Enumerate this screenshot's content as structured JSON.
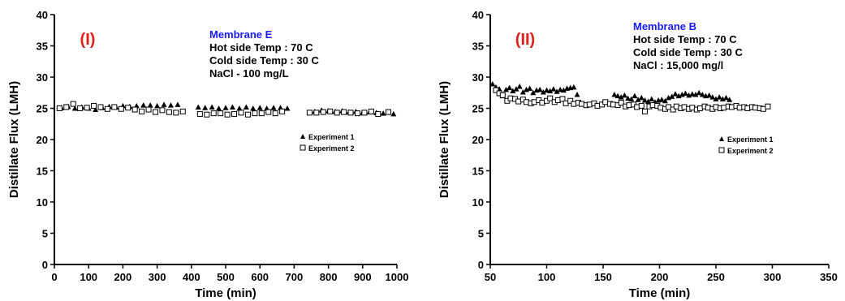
{
  "chart_data": [
    {
      "type": "scatter",
      "panel_label": "(I)",
      "xlabel": "Time (min)",
      "ylabel": "Distillate Flux (LMH)",
      "xlim": [
        0,
        1000
      ],
      "ylim": [
        0,
        40
      ],
      "xticks": [
        0,
        100,
        200,
        300,
        400,
        500,
        600,
        700,
        800,
        900,
        1000
      ],
      "yticks": [
        0,
        5,
        10,
        15,
        20,
        25,
        30,
        35,
        40
      ],
      "annotation": {
        "title": "Membrane E",
        "lines": [
          "Hot side Temp : 70 C",
          "Cold side Temp : 30 C",
          "NaCl - 100 mg/L"
        ]
      },
      "legend_position": "right-middle",
      "series": [
        {
          "name": "Experiment 1",
          "marker": "filled-triangle",
          "x": [
            20,
            40,
            60,
            80,
            100,
            120,
            140,
            160,
            180,
            200,
            220,
            240,
            260,
            280,
            300,
            320,
            340,
            360,
            420,
            440,
            460,
            480,
            500,
            520,
            540,
            560,
            580,
            600,
            620,
            640,
            660,
            680,
            760,
            780,
            800,
            820,
            840,
            860,
            880,
            900,
            920,
            940,
            960,
            990
          ],
          "y": [
            25.1,
            25.3,
            25.0,
            25.2,
            25.0,
            24.8,
            25.1,
            25.3,
            25.2,
            25.4,
            25.3,
            25.4,
            25.5,
            25.5,
            25.4,
            25.6,
            25.5,
            25.6,
            25.2,
            25.1,
            25.2,
            25.0,
            25.1,
            25.2,
            25.0,
            25.2,
            25.0,
            25.1,
            25.0,
            25.1,
            25.1,
            25.0,
            24.5,
            24.7,
            24.6,
            24.5,
            24.6,
            24.4,
            24.5,
            24.3,
            24.4,
            24.3,
            24.2,
            24.1
          ]
        },
        {
          "name": "Experiment 2",
          "marker": "open-square",
          "x": [
            15,
            35,
            55,
            75,
            95,
            115,
            135,
            155,
            175,
            195,
            215,
            235,
            255,
            275,
            295,
            315,
            335,
            355,
            375,
            425,
            445,
            465,
            485,
            505,
            525,
            545,
            565,
            585,
            605,
            625,
            645,
            665,
            745,
            765,
            785,
            805,
            825,
            845,
            865,
            885,
            905,
            925,
            945,
            975
          ],
          "y": [
            25.0,
            25.2,
            25.7,
            25.0,
            25.1,
            25.4,
            25.2,
            24.9,
            25.2,
            24.9,
            25.1,
            24.8,
            24.5,
            24.8,
            24.4,
            24.7,
            24.4,
            24.3,
            24.5,
            24.1,
            24.0,
            24.2,
            24.2,
            24.0,
            24.1,
            24.3,
            24.0,
            24.2,
            24.2,
            24.4,
            24.2,
            24.5,
            24.3,
            24.3,
            24.4,
            24.5,
            24.3,
            24.4,
            24.3,
            24.2,
            24.3,
            24.5,
            24.1,
            24.4
          ]
        }
      ]
    },
    {
      "type": "scatter",
      "panel_label": "(II)",
      "xlabel": "Time (min)",
      "ylabel": "Distillate Flux (LMH)",
      "xlim": [
        50,
        350
      ],
      "ylim": [
        0,
        40
      ],
      "xticks": [
        50,
        100,
        150,
        200,
        250,
        300,
        350
      ],
      "yticks": [
        0,
        5,
        10,
        15,
        20,
        25,
        30,
        35,
        40
      ],
      "annotation": {
        "title": "Membrane B",
        "lines": [
          "Hot side Temp : 70 C",
          "Cold side Temp : 30 C",
          "NaCl : 15,000 mg/l"
        ]
      },
      "legend_position": "right-middle",
      "series": [
        {
          "name": "Experiment 1",
          "marker": "filled-triangle",
          "x": [
            52,
            55,
            58,
            61,
            64,
            67,
            70,
            73,
            76,
            79,
            82,
            85,
            88,
            91,
            94,
            97,
            100,
            103,
            106,
            109,
            112,
            115,
            118,
            121,
            124,
            127,
            160,
            163,
            166,
            169,
            172,
            175,
            178,
            181,
            184,
            187,
            190,
            193,
            196,
            199,
            202,
            205,
            208,
            211,
            214,
            217,
            220,
            223,
            226,
            229,
            232,
            235,
            238,
            241,
            244,
            247,
            250,
            253,
            256,
            259,
            262
          ],
          "y": [
            28.9,
            28.4,
            28.1,
            27.0,
            28.0,
            28.3,
            27.8,
            28.1,
            28.5,
            27.6,
            28.0,
            28.2,
            27.5,
            27.9,
            28.0,
            27.6,
            27.9,
            27.8,
            28.1,
            27.7,
            28.0,
            27.9,
            28.2,
            28.3,
            28.4,
            27.2,
            27.2,
            27.0,
            26.8,
            27.1,
            26.6,
            26.5,
            27.0,
            26.4,
            26.7,
            26.3,
            26.1,
            26.5,
            26.0,
            26.3,
            26.4,
            26.2,
            26.7,
            26.9,
            27.3,
            27.0,
            27.2,
            27.4,
            27.1,
            27.3,
            27.2,
            27.5,
            27.2,
            27.0,
            27.1,
            26.8,
            26.5,
            26.8,
            26.5,
            26.7,
            26.4
          ]
        },
        {
          "name": "Experiment 2",
          "marker": "open-square",
          "x": [
            55,
            58,
            61,
            65,
            68,
            72,
            75,
            79,
            82,
            86,
            89,
            93,
            96,
            100,
            103,
            107,
            110,
            114,
            117,
            121,
            124,
            128,
            131,
            135,
            138,
            142,
            145,
            149,
            152,
            156,
            159,
            163,
            166,
            170,
            173,
            177,
            180,
            184,
            187,
            191,
            194,
            198,
            201,
            205,
            208,
            212,
            215,
            219,
            222,
            226,
            229,
            233,
            236,
            240,
            243,
            247,
            250,
            254,
            257,
            261,
            264,
            268,
            271,
            275,
            278,
            282,
            285,
            289,
            292,
            296
          ],
          "y": [
            27.9,
            27.4,
            27.1,
            26.2,
            26.6,
            26.5,
            26.1,
            26.4,
            26.0,
            25.8,
            26.0,
            26.3,
            25.9,
            26.2,
            26.6,
            26.0,
            26.3,
            26.5,
            25.8,
            26.2,
            25.7,
            25.9,
            25.7,
            25.5,
            25.6,
            25.8,
            25.4,
            25.6,
            26.0,
            25.7,
            25.6,
            25.5,
            25.9,
            25.3,
            25.5,
            25.6,
            25.2,
            25.4,
            24.5,
            25.3,
            25.5,
            25.4,
            25.1,
            24.9,
            25.2,
            24.8,
            25.3,
            25.0,
            25.2,
            24.9,
            25.1,
            24.8,
            25.0,
            25.3,
            25.1,
            24.9,
            25.2,
            25.0,
            25.1,
            25.3,
            25.2,
            25.4,
            25.1,
            25.2,
            25.0,
            25.2,
            25.1,
            25.0,
            24.9,
            25.3
          ]
        }
      ]
    }
  ]
}
